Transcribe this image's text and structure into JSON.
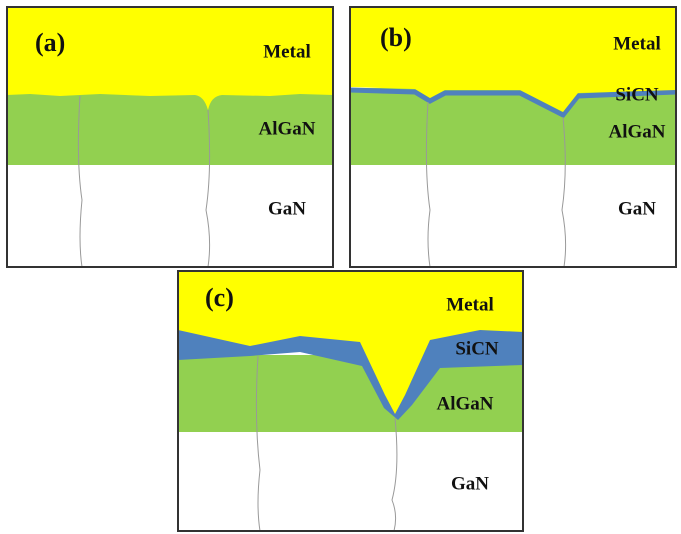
{
  "panels": [
    {
      "label": "(a)",
      "layers": [
        "Metal",
        "AlGaN",
        "GaN"
      ]
    },
    {
      "label": "(b)",
      "layers": [
        "Metal",
        "SiCN",
        "AlGaN",
        "GaN"
      ]
    },
    {
      "label": "(c)",
      "layers": [
        "Metal",
        "SiCN",
        "AlGaN",
        "GaN"
      ]
    }
  ]
}
